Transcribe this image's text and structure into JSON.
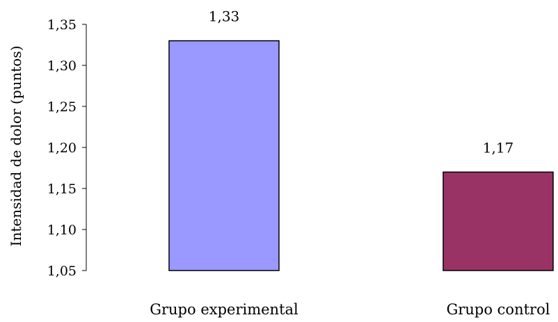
{
  "chart_data": {
    "type": "bar",
    "categories": [
      "Grupo experimental",
      "Grupo control"
    ],
    "values": [
      1.33,
      1.17
    ],
    "value_labels": [
      "1,33",
      "1,17"
    ],
    "colors": [
      "#9999ff",
      "#993366"
    ],
    "ylabel": "Intensidad de dolor (puntos)",
    "xlabel": "",
    "title": "",
    "ylim": [
      1.05,
      1.35
    ],
    "yticks": [
      1.05,
      1.1,
      1.15,
      1.2,
      1.25,
      1.3,
      1.35
    ],
    "ytick_labels": [
      "1,05",
      "1,10",
      "1,15",
      "1,20",
      "1,25",
      "1,30",
      "1,35"
    ],
    "grid": false,
    "legend": "none"
  }
}
